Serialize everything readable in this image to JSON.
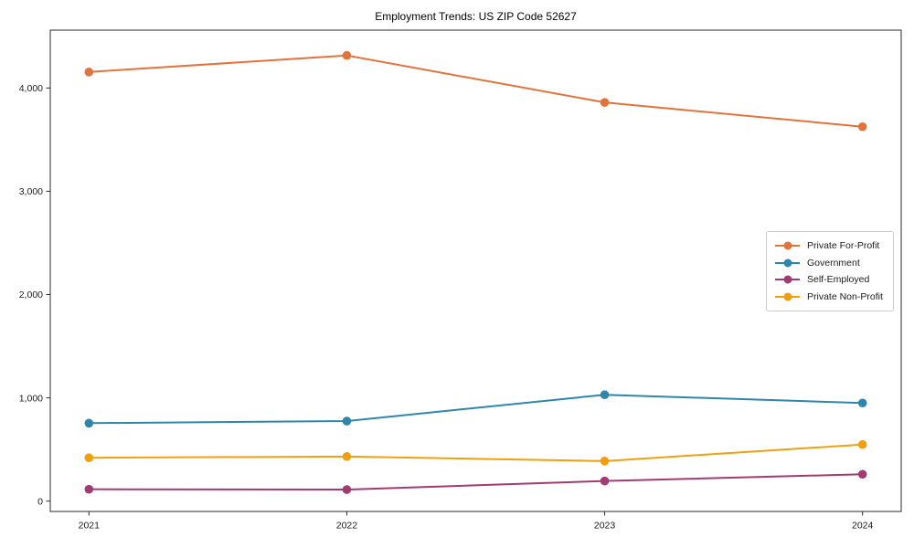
{
  "figure": {
    "background": "#ffffff"
  },
  "chart_data": {
    "type": "line",
    "title": "Employment Trends: US ZIP Code 52627",
    "x": [
      2021,
      2022,
      2023,
      2024
    ],
    "categories": [
      "2021",
      "2022",
      "2023",
      "2024"
    ],
    "series": [
      {
        "name": "Private For-Profit",
        "color": "#e2733a",
        "values": [
          4155,
          4315,
          3860,
          3625
        ]
      },
      {
        "name": "Government",
        "color": "#2e86ab",
        "values": [
          755,
          775,
          1030,
          950
        ]
      },
      {
        "name": "Self-Employed",
        "color": "#a23b72",
        "values": [
          115,
          112,
          195,
          260
        ]
      },
      {
        "name": "Private Non-Profit",
        "color": "#f0a00e",
        "values": [
          420,
          432,
          388,
          548
        ]
      }
    ],
    "xlabel": "",
    "ylabel": "",
    "xlim": [
      2020.85,
      2024.15
    ],
    "ylim": [
      -100,
      4560
    ],
    "yticks": [
      0,
      1000,
      2000,
      3000,
      4000
    ],
    "ytick_labels": [
      "0",
      "1,000",
      "2,000",
      "3,000",
      "4,000"
    ],
    "grid": false,
    "legend_position": "center right",
    "marker": "circle",
    "line_width": 2,
    "axis_color": "#2b2b2b",
    "text_color": "#1a1a1a"
  }
}
